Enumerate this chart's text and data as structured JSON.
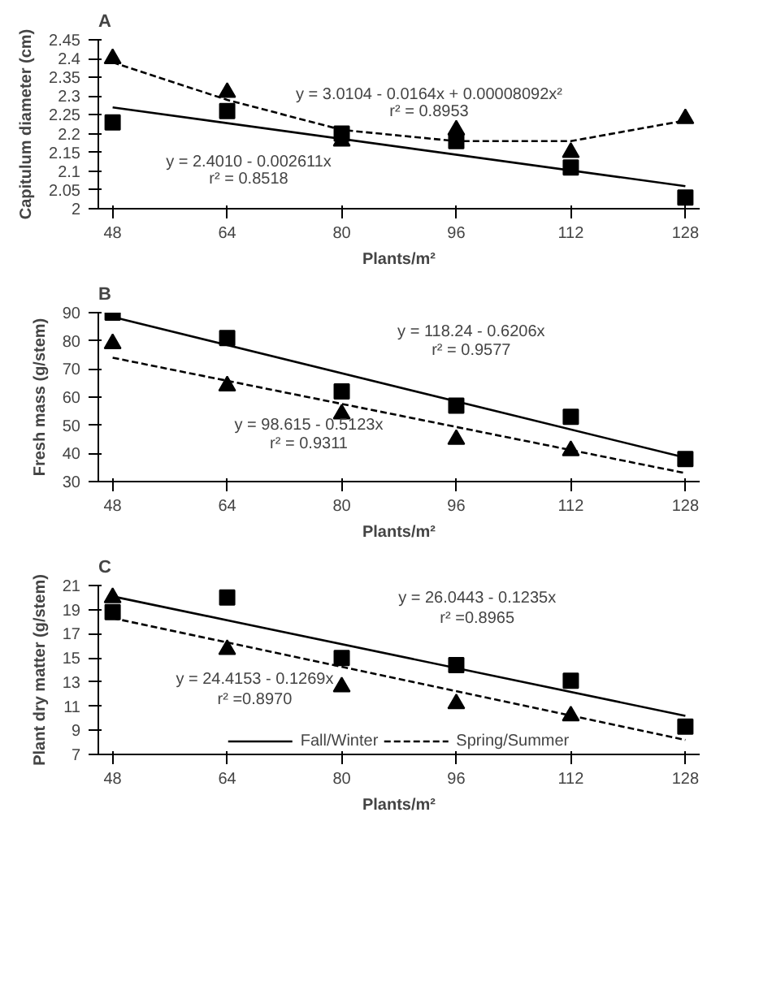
{
  "chart_data": [
    {
      "type": "scatter",
      "title": "A",
      "xlabel": "Plants/m²",
      "ylabel": "Capitulum diameter (cm)",
      "x": [
        48,
        64,
        80,
        96,
        112,
        128
      ],
      "xlim": [
        46,
        130
      ],
      "xticks": [
        48,
        64,
        80,
        96,
        112,
        128
      ],
      "ylim": [
        2,
        2.45
      ],
      "yticks": [
        2,
        {
          "value": 2.05,
          "label": "2.05"
        },
        {
          "value": 2.1,
          "label": "2.1"
        },
        {
          "value": 2.15,
          "label": "2.15"
        },
        {
          "value": 2.2,
          "label": "2.2"
        },
        {
          "value": 2.25,
          "label": "2.25"
        },
        {
          "value": 2.3,
          "label": "2.3"
        },
        {
          "value": 2.35,
          "label": "2.35"
        },
        {
          "value": 2.4,
          "label": "2.4"
        },
        {
          "value": 2.45,
          "label": "2.45"
        }
      ],
      "grid": false,
      "annotations": [
        "y = 3.0104 - 0.0164x + 0.00008092x²",
        "r² = 0.8953",
        "y = 2.4010 - 0.002611x",
        "r² = 0.8518"
      ],
      "series": [
        {
          "type": "line",
          "color": "#000000",
          "marker": "none",
          "line_style": "solid",
          "x": [
            48,
            128
          ],
          "values": [
            2.27,
            2.06
          ]
        },
        {
          "type": "line",
          "color": "#000000",
          "marker": "none",
          "line_style": "dashed",
          "x": [
            48,
            64,
            80,
            96,
            112,
            128
          ],
          "values": [
            2.39,
            2.29,
            2.21,
            2.18,
            2.18,
            2.235
          ]
        },
        {
          "color": "#000000",
          "marker": "square",
          "values": [
            2.23,
            2.26,
            2.2,
            2.18,
            2.11,
            2.03
          ]
        },
        {
          "color": "#000000",
          "marker": "triangle",
          "values": [
            2.4,
            2.31,
            2.18,
            2.21,
            2.15,
            2.24
          ]
        }
      ]
    },
    {
      "type": "scatter",
      "title": "B",
      "xlabel": "Plants/m²",
      "ylabel": "Fresh mass (g/stem)",
      "x": [
        48,
        64,
        80,
        96,
        112,
        128
      ],
      "xlim": [
        46,
        130
      ],
      "xticks": [
        48,
        64,
        80,
        96,
        112,
        128
      ],
      "ylim": [
        30,
        90
      ],
      "yticks": [
        30,
        40,
        50,
        60,
        70,
        80,
        90
      ],
      "grid": false,
      "annotations": [
        "y = 118.24 - 0.6206x",
        "r² = 0.9577",
        "y = 98.615 - 0.5123x",
        "r² = 0.9311"
      ],
      "series": [
        {
          "type": "line",
          "color": "#000000",
          "marker": "none",
          "line_style": "solid",
          "x": [
            48,
            128
          ],
          "values": [
            88.5,
            38.5
          ]
        },
        {
          "type": "line",
          "color": "#000000",
          "marker": "none",
          "line_style": "dashed",
          "x": [
            48,
            128
          ],
          "values": [
            74,
            33
          ]
        },
        {
          "color": "#000000",
          "marker": "square",
          "values": [
            90,
            81,
            62,
            57,
            53,
            38
          ]
        },
        {
          "color": "#000000",
          "marker": "triangle",
          "values": [
            79,
            64,
            54,
            45,
            41,
            null
          ]
        }
      ]
    },
    {
      "type": "scatter",
      "title": "C",
      "xlabel": "Plants/m²",
      "ylabel": "Plant dry matter (g/stem)",
      "x": [
        48,
        64,
        80,
        96,
        112,
        128
      ],
      "xlim": [
        46,
        130
      ],
      "xticks": [
        48,
        64,
        80,
        96,
        112,
        128
      ],
      "ylim": [
        7,
        21
      ],
      "yticks": [
        7,
        9,
        11,
        13,
        15,
        17,
        19,
        21
      ],
      "grid": false,
      "legend": "bottom",
      "annotations": [
        "y = 26.0443 - 0.1235x",
        "r² =0.8965",
        "y = 24.4153 - 0.1269x",
        "r² =0.8970"
      ],
      "series": [
        {
          "type": "line",
          "name": "Fall/Winter",
          "color": "#000000",
          "marker": "none",
          "line_style": "solid",
          "x": [
            48,
            128
          ],
          "values": [
            20.1,
            10.2
          ]
        },
        {
          "type": "line",
          "name": "Spring/Summer",
          "color": "#000000",
          "marker": "none",
          "line_style": "dashed",
          "x": [
            48,
            128
          ],
          "values": [
            18.3,
            8.2
          ]
        },
        {
          "color": "#000000",
          "marker": "square",
          "values": [
            18.8,
            20,
            15,
            14.4,
            13.1,
            9.3
          ]
        },
        {
          "color": "#000000",
          "marker": "triangle",
          "values": [
            20,
            15.7,
            12.6,
            11.2,
            10.2,
            null
          ]
        }
      ]
    }
  ]
}
